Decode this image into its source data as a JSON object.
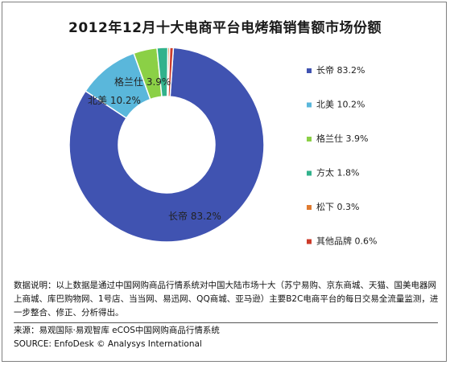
{
  "chart_data": {
    "type": "pie",
    "donut": true,
    "title": "2012年12月十大电商平台电烤箱销售额市场份额",
    "slices": [
      {
        "name": "长帝",
        "value": 83.2,
        "label": "83.2%",
        "color": "#4053b1"
      },
      {
        "name": "北美",
        "value": 10.2,
        "label": "10.2%",
        "color": "#5ab7db"
      },
      {
        "name": "格兰仕",
        "value": 3.9,
        "label": "3.9%",
        "color": "#8bd046"
      },
      {
        "name": "方太",
        "value": 1.8,
        "label": "1.8%",
        "color": "#32b28c"
      },
      {
        "name": "松下",
        "value": 0.3,
        "label": "0.3%",
        "color": "#e07b30"
      },
      {
        "name": "其他品牌",
        "value": 0.6,
        "label": "0.6%",
        "color": "#cc3b2a"
      }
    ],
    "data_labels": [
      "长帝 83.2%",
      "北美 10.2%",
      "格兰仕 3.9%"
    ],
    "legend_placement": "right"
  },
  "notes": "数据说明：以上数据是通过中国网购商品行情系统对中国大陆市场十大（苏宁易购、京东商城、天猫、国美电器网上商城、库巴购物网、1号店、当当网、易迅网、QQ商城、亚马逊）主要B2C电商平台的每日交易全流量监测，进一步整合、修正、分析得出。",
  "source_line": "来源：易观国际·易观智库  eCOS中国网购商品行情系统",
  "source_en": "SOURCE: EnfoDesk © Analysys International"
}
